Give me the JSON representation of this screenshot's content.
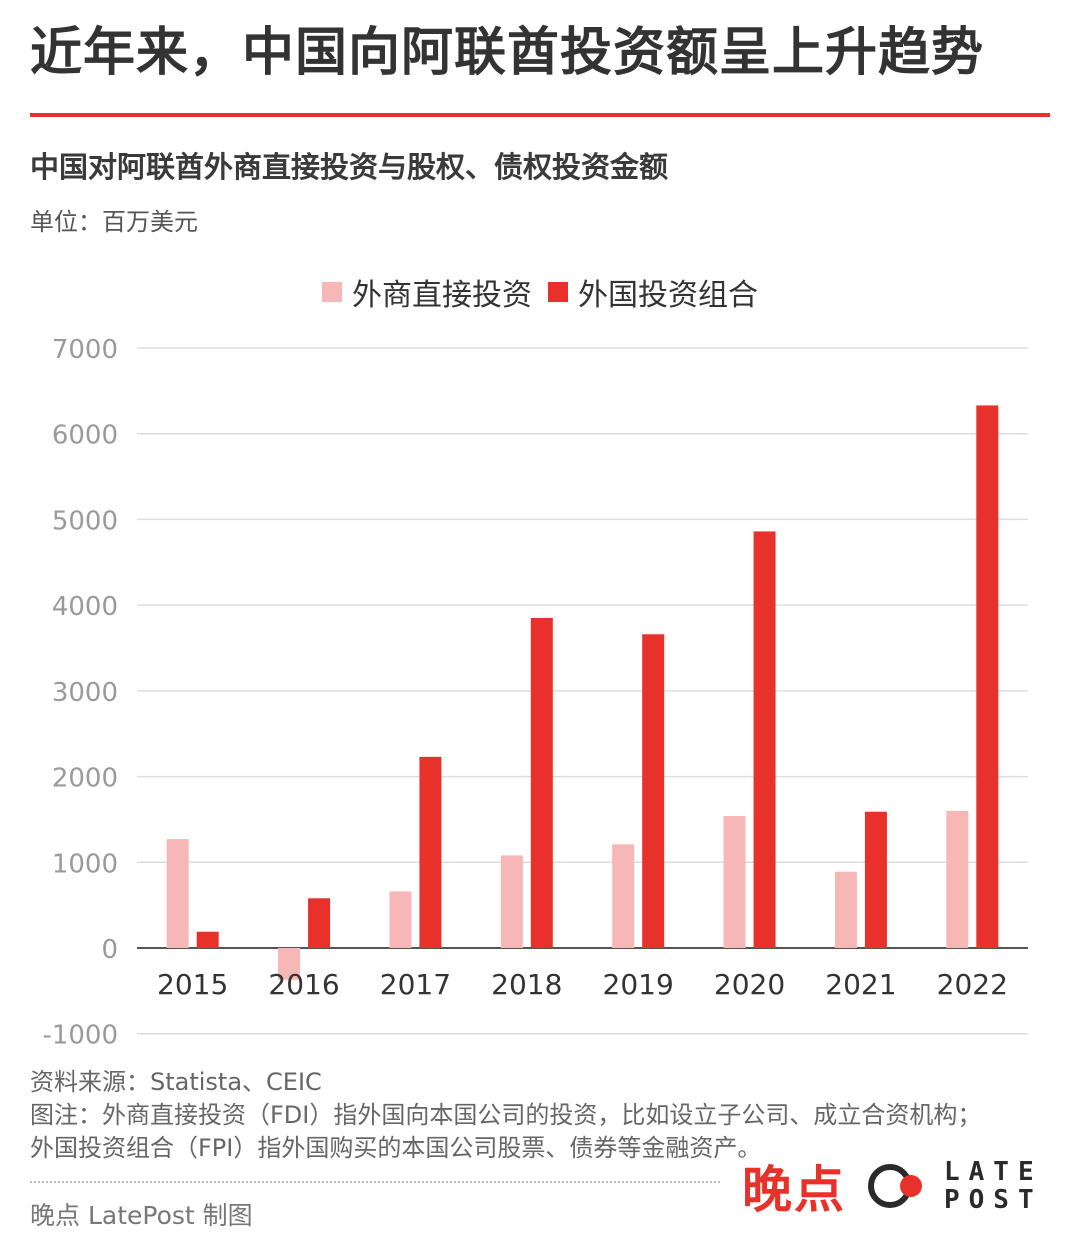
{
  "headline": "近年来，中国向阿联酋投资额呈上升趋势",
  "chart_data": {
    "type": "bar",
    "title": "中国对阿联酋外商直接投资与股权、债权投资金额",
    "unit_label": "单位：百万美元",
    "categories": [
      "2015",
      "2016",
      "2017",
      "2018",
      "2019",
      "2020",
      "2021",
      "2022"
    ],
    "series": [
      {
        "name": "外商直接投资",
        "color": "#f7b7b7",
        "values": [
          1270,
          -370,
          660,
          1080,
          1210,
          1540,
          890,
          1600
        ]
      },
      {
        "name": "外国投资组合",
        "color": "#e8312a",
        "values": [
          190,
          580,
          2230,
          3850,
          3660,
          4860,
          1590,
          6330
        ]
      }
    ],
    "ylim": [
      -1000,
      7000
    ],
    "yticks": [
      "7000",
      "6000",
      "5000",
      "4000",
      "3000",
      "2000",
      "1000",
      "0",
      "-1000"
    ],
    "xlabel": "",
    "ylabel": "",
    "grid": true,
    "legend_position": "top-center"
  },
  "footnotes": {
    "source": "资料来源：Statista、CEIC",
    "note_line1": "图注：外商直接投资（FDI）指外国向本国公司的投资，比如设立子公司、成立合资机构；",
    "note_line2": "外国投资组合（FPI）指外国购买的本国公司股票、债券等金融资产。"
  },
  "credit": "晚点 LatePost 制图",
  "logo": {
    "cn_text": "晚点",
    "en_line1": "LATE",
    "en_line2": "POST"
  },
  "colors": {
    "accent": "#e8312a",
    "fdi": "#f7b7b7",
    "grid": "#dddddd"
  }
}
